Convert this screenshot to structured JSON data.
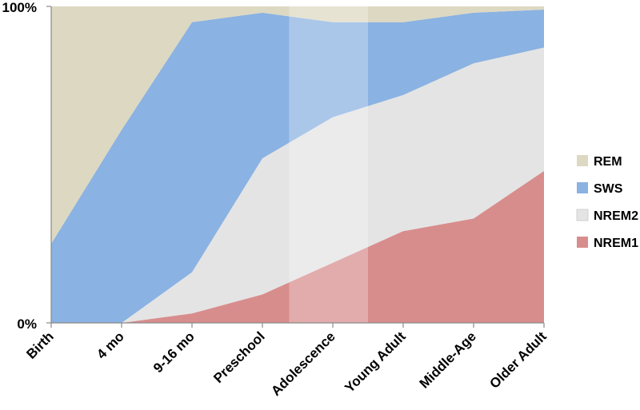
{
  "chart_data": {
    "type": "area",
    "stacked": true,
    "percent": true,
    "categories": [
      "Birth",
      "4 mo",
      "9-16 mo",
      "Preschool",
      "Adolescence",
      "Young Adult",
      "Middle-Age",
      "Older Adult"
    ],
    "ylim": [
      0,
      100
    ],
    "y_tick_labels": [
      "0%",
      "100%"
    ],
    "legend_position": "right",
    "highlight_band": [
      "Preschool",
      "Young Adult"
    ],
    "series": [
      {
        "name": "NREM1",
        "color": "#d88d8d",
        "values": [
          0,
          0,
          3,
          9,
          19,
          29,
          33,
          48
        ]
      },
      {
        "name": "NREM2",
        "color": "#e4e4e4",
        "values": [
          0,
          0,
          13,
          43,
          46,
          43,
          49,
          39
        ]
      },
      {
        "name": "SWS",
        "color": "#8ab2e2",
        "values": [
          25,
          61,
          79,
          46,
          30,
          23,
          16,
          12
        ]
      },
      {
        "name": "REM",
        "color": "#ddd8c2",
        "values": [
          75,
          39,
          5,
          2,
          5,
          5,
          2,
          1
        ]
      }
    ],
    "legend_order": [
      "REM",
      "SWS",
      "NREM2",
      "NREM1"
    ]
  }
}
